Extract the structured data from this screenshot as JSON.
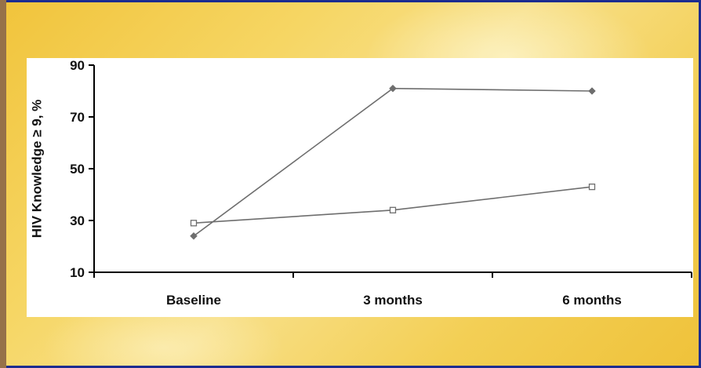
{
  "chart_data": {
    "type": "line",
    "categories": [
      "Baseline",
      "3 months",
      "6 months"
    ],
    "ylabel": "HIV Knowledge ≥ 9, %",
    "xlabel": "",
    "ylim": [
      10,
      90
    ],
    "yticks": [
      "10",
      "30",
      "50",
      "70",
      "90"
    ],
    "series": [
      {
        "values": [
          24,
          81,
          80
        ],
        "marker": "filled-diamond",
        "color": "#6e6e6e"
      },
      {
        "values": [
          29,
          34,
          43
        ],
        "marker": "open-square",
        "color": "#6e6e6e"
      }
    ],
    "legend": "none",
    "grid": false
  }
}
